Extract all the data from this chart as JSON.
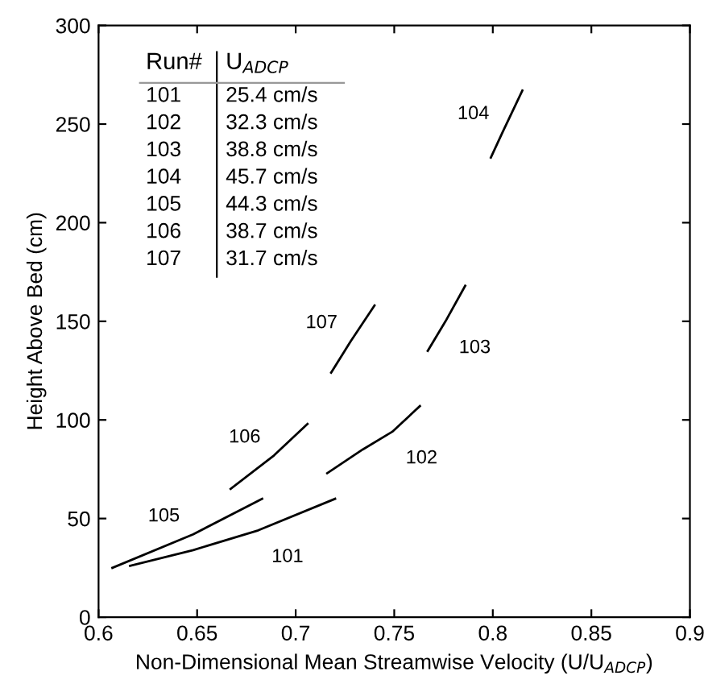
{
  "chart_data": {
    "type": "line",
    "xlabel": "Non-Dimensional Mean Streamwise Velocity (U/U$_{ADCP}$)",
    "ylabel": "Height Above Bed (cm)",
    "xlim": [
      0.6,
      0.9
    ],
    "xticks": [
      0.6,
      0.65,
      0.7,
      0.75,
      0.8,
      0.85,
      0.9
    ],
    "ylim": [
      0,
      300
    ],
    "yticks": [
      0,
      50,
      100,
      150,
      200,
      250,
      300
    ],
    "grid": false,
    "legend": false,
    "line_style": "solid",
    "marker": "none",
    "series": [
      {
        "name": "105",
        "color": "#000000",
        "x": [
          0.607,
          0.648,
          0.683
        ],
        "values": [
          25,
          42,
          60
        ]
      },
      {
        "name": "101",
        "color": "#000000",
        "x": [
          0.616,
          0.648,
          0.681,
          0.72
        ],
        "values": [
          26,
          34,
          44,
          60
        ]
      },
      {
        "name": "106",
        "color": "#000000",
        "x": [
          0.667,
          0.689,
          0.706
        ],
        "values": [
          65,
          82,
          98
        ]
      },
      {
        "name": "102",
        "color": "#000000",
        "x": [
          0.716,
          0.734,
          0.749,
          0.763
        ],
        "values": [
          73,
          85,
          94,
          107
        ]
      },
      {
        "name": "107",
        "color": "#000000",
        "x": [
          0.718,
          0.728,
          0.74
        ],
        "values": [
          124,
          140,
          158
        ]
      },
      {
        "name": "103",
        "color": "#000000",
        "x": [
          0.767,
          0.776,
          0.786
        ],
        "values": [
          135,
          150,
          168
        ]
      },
      {
        "name": "104",
        "color": "#000000",
        "x": [
          0.799,
          0.805,
          0.815
        ],
        "values": [
          233,
          246,
          267
        ]
      }
    ],
    "annotations": [
      "Run#",
      "U$_{ADCP}$",
      "101",
      "25.4 cm/s",
      "102",
      "32.3 cm/s",
      "103",
      "38.8 cm/s",
      "104",
      "45.7 cm/s",
      "105",
      "44.3 cm/s",
      "106",
      "38.7 cm/s",
      "107",
      "31.7 cm/s"
    ]
  }
}
